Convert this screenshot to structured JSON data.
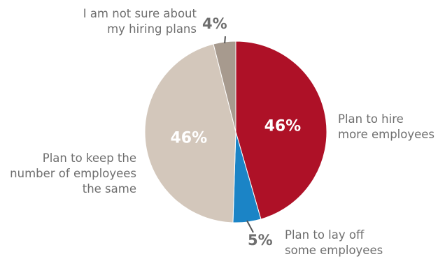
{
  "chart_data": {
    "type": "pie",
    "title": "",
    "slices": [
      {
        "label": "Plan to hire\nmore employees",
        "value": 46,
        "value_label": "46%",
        "color": "#ae1127",
        "value_label_color": "#ffffff",
        "value_label_position": "inside"
      },
      {
        "label": "Plan to lay off\nsome employees",
        "value": 5,
        "value_label": "5%",
        "color": "#1b84c6",
        "value_label_color": "#6e6e6e",
        "value_label_position": "outside"
      },
      {
        "label": "Plan to keep the\nnumber of employees\nthe same",
        "value": 46,
        "value_label": "46%",
        "color": "#d3c7bb",
        "value_label_color": "#ffffff",
        "value_label_position": "inside"
      },
      {
        "label": "I am not sure about\nmy hiring plans",
        "value": 4,
        "value_label": "4%",
        "color": "#a79a8e",
        "value_label_color": "#6e6e6e",
        "value_label_position": "outside"
      }
    ]
  }
}
